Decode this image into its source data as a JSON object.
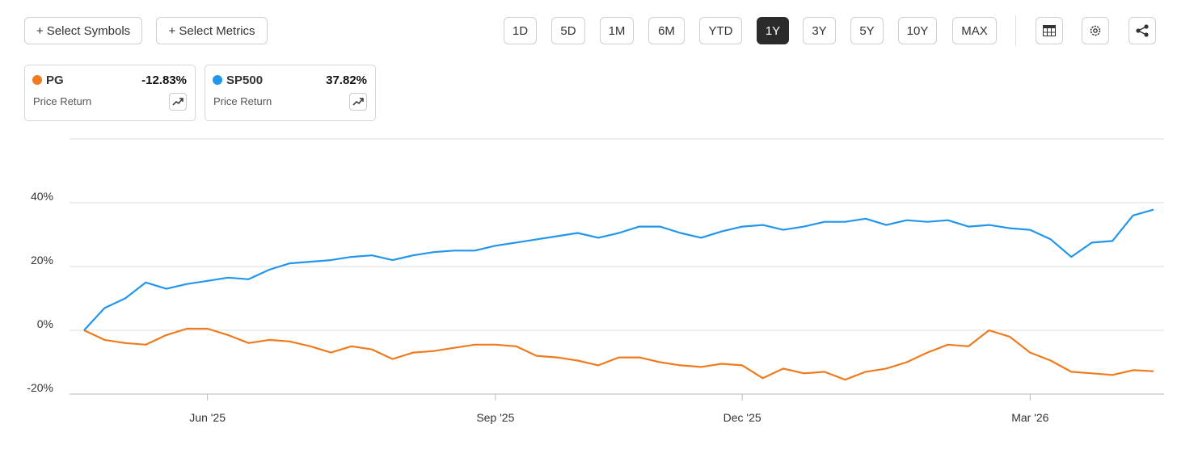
{
  "toolbar": {
    "select_symbols": "+ Select Symbols",
    "select_metrics": "+ Select Metrics",
    "ranges": [
      "1D",
      "5D",
      "1M",
      "6M",
      "YTD",
      "1Y",
      "3Y",
      "5Y",
      "10Y",
      "MAX"
    ],
    "active_range": "1Y"
  },
  "cards": [
    {
      "symbol": "PG",
      "change": "-12.83%",
      "metric": "Price Return",
      "color": "#f07a1e"
    },
    {
      "symbol": "SP500",
      "change": "37.82%",
      "metric": "Price Return",
      "color": "#2295ec"
    }
  ],
  "chart_data": {
    "type": "line",
    "categories": [
      null,
      null,
      null,
      null,
      null,
      null,
      "Jun '25",
      null,
      null,
      null,
      null,
      null,
      null,
      null,
      null,
      null,
      null,
      null,
      null,
      null,
      "Sep '25",
      null,
      null,
      null,
      null,
      null,
      null,
      null,
      null,
      null,
      null,
      null,
      "Dec '25",
      null,
      null,
      null,
      null,
      null,
      null,
      null,
      null,
      null,
      null,
      null,
      null,
      null,
      "Mar '26",
      null,
      null,
      null,
      null,
      null,
      null
    ],
    "series": [
      {
        "name": "PG",
        "color": "#f07a1e",
        "values": [
          0,
          -3,
          -4,
          -4.5,
          -1.5,
          0.5,
          0.5,
          -1.5,
          -4,
          -3,
          -3.5,
          -5,
          -7,
          -5,
          -6,
          -9,
          -7,
          -6.5,
          -5.5,
          -4.5,
          -4.5,
          -5,
          -8,
          -8.5,
          -9.5,
          -11,
          -8.5,
          -8.5,
          -10,
          -11,
          -11.5,
          -10.5,
          -11,
          -15,
          -12,
          -13.5,
          -13,
          -15.5,
          -13,
          -12,
          -10,
          -7,
          -4.5,
          -5,
          0,
          -2,
          -7,
          -9.5,
          -13,
          -13.5,
          -14,
          -12.5,
          -12.83
        ]
      },
      {
        "name": "SP500",
        "color": "#2295ec",
        "values": [
          0,
          7,
          10,
          15,
          13,
          14.5,
          15.5,
          16.5,
          16,
          19,
          21,
          21.5,
          22,
          23,
          23.5,
          22,
          23.5,
          24.5,
          25,
          25,
          26.5,
          27.5,
          28.5,
          29.5,
          30.5,
          29,
          30.5,
          32.5,
          32.5,
          30.5,
          29,
          31,
          32.5,
          33,
          31.5,
          32.5,
          34,
          34,
          35,
          33,
          34.5,
          34,
          34.5,
          32.5,
          33,
          32,
          31.5,
          28.5,
          23,
          27.5,
          28,
          36,
          37.82
        ]
      }
    ],
    "ylim": [
      -20,
      60
    ],
    "yticks": [
      {
        "value": -20,
        "label": "-20%"
      },
      {
        "value": 0,
        "label": "0%"
      },
      {
        "value": 20,
        "label": "20%"
      },
      {
        "value": 40,
        "label": "40%"
      }
    ],
    "grid": true
  }
}
